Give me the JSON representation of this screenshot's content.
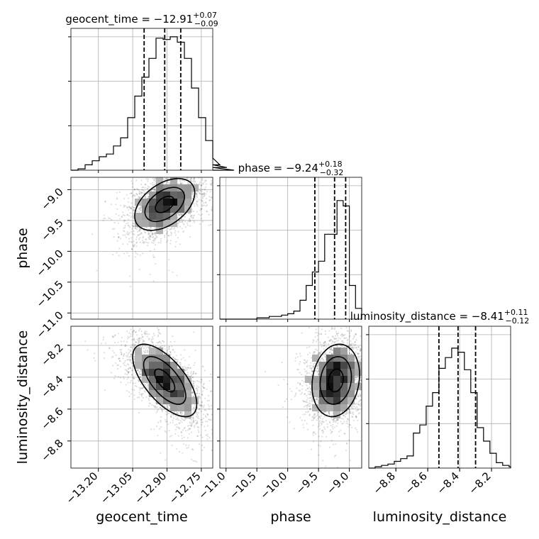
{
  "chart_data": {
    "type": "corner",
    "grid": true,
    "parameters": [
      {
        "name": "geocent_time",
        "range": [
          -13.32,
          -12.7
        ],
        "ticks": [
          -13.2,
          -13.05,
          -12.9,
          -12.75
        ],
        "tick_labels": [
          "−13.20",
          "−13.05",
          "−12.90",
          "−12.75"
        ]
      },
      {
        "name": "phase",
        "range": [
          -11.1,
          -8.8
        ],
        "ticks": [
          -11.0,
          -10.5,
          -10.0,
          -9.5,
          -9.0
        ],
        "tick_labels": [
          "−11.0",
          "−10.5",
          "−10.0",
          "−9.5",
          "−9.0"
        ]
      },
      {
        "name": "luminosity_distance",
        "range": [
          -8.97,
          -8.08
        ],
        "ticks": [
          -8.8,
          -8.6,
          -8.4,
          -8.2
        ],
        "tick_labels": [
          "−8.8",
          "−8.6",
          "−8.4",
          "−8.2"
        ]
      }
    ],
    "titles": [
      {
        "prefix": "geocent_time = −12.91",
        "plus": "+0.07",
        "minus": "−0.09"
      },
      {
        "prefix": "phase = −9.24",
        "plus": "+0.18",
        "minus": "−0.32"
      },
      {
        "prefix": "luminosity_distance = −8.41",
        "plus": "+0.11",
        "minus": "−0.12"
      }
    ],
    "axis_labels": {
      "x": [
        "geocent_time",
        "phase",
        "luminosity_distance"
      ],
      "y": [
        "phase",
        "luminosity_distance"
      ]
    },
    "quantiles": [
      [
        -13.0,
        -12.91,
        -12.84
      ],
      [
        -9.56,
        -9.24,
        -9.06
      ],
      [
        -8.53,
        -8.41,
        -8.3
      ]
    ],
    "histograms": [
      {
        "edges_start": -13.32,
        "bin_width": 0.031,
        "counts": [
          0.0,
          0.01,
          0.04,
          0.07,
          0.1,
          0.12,
          0.18,
          0.24,
          0.39,
          0.55,
          0.69,
          0.83,
          0.98,
          0.97,
          0.99,
          0.95,
          0.83,
          0.61,
          0.39,
          0.22,
          0.09,
          0.04,
          0.02,
          0.0
        ]
      },
      {
        "edges_start": -11.1,
        "bin_width": 0.1,
        "counts": [
          0.0,
          0.0,
          0.0,
          0.0,
          0.0,
          0.0,
          0.01,
          0.01,
          0.02,
          0.02,
          0.03,
          0.04,
          0.06,
          0.14,
          0.25,
          0.35,
          0.43,
          0.63,
          0.63,
          0.88,
          0.84,
          0.25,
          0.08
        ]
      },
      {
        "edges_start": -8.97,
        "bin_width": 0.04,
        "counts": [
          0.0,
          0.01,
          0.02,
          0.03,
          0.05,
          0.07,
          0.09,
          0.26,
          0.32,
          0.46,
          0.56,
          0.74,
          0.82,
          0.89,
          0.86,
          0.73,
          0.56,
          0.3,
          0.2,
          0.11,
          0.04,
          0.02,
          0.01
        ]
      }
    ],
    "peaks": [
      {
        "x": -12.91,
        "y": -9.24,
        "rx": 0.075,
        "ry": 0.24,
        "rho": 0.45
      },
      {
        "x": -12.91,
        "y": -8.42,
        "rx": 0.08,
        "ry": 0.13,
        "rho": -0.65
      },
      {
        "x": -9.22,
        "y": -8.42,
        "rx": 0.22,
        "ry": 0.13,
        "rho": 0.15
      }
    ]
  }
}
